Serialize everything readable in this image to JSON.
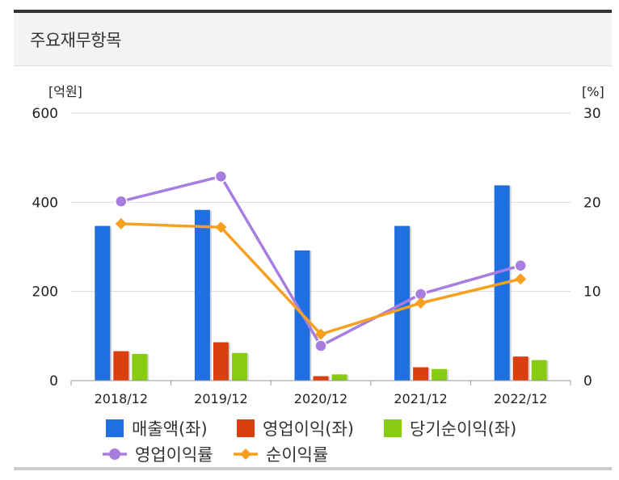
{
  "header": {
    "title": "주요재무항목"
  },
  "chart_data": {
    "type": "bar",
    "categories": [
      "2018/12",
      "2019/12",
      "2020/12",
      "2021/12",
      "2022/12"
    ],
    "left_axis": {
      "unit": "[억원]",
      "ylim": [
        0,
        600
      ],
      "ticks": [
        "0",
        "200",
        "400",
        "600"
      ]
    },
    "right_axis": {
      "unit": "[%]",
      "ylim": [
        0,
        30
      ],
      "ticks": [
        "0",
        "10",
        "20",
        "30"
      ]
    },
    "series": [
      {
        "name": "매출액(좌)",
        "type": "bar",
        "axis": "left",
        "color": "#1f6fe0",
        "values": [
          347,
          383,
          292,
          347,
          438
        ]
      },
      {
        "name": "영업이익(좌)",
        "type": "bar",
        "axis": "left",
        "color": "#d9400d",
        "values": [
          66,
          86,
          10,
          30,
          54
        ]
      },
      {
        "name": "당기순이익(좌)",
        "type": "bar",
        "axis": "left",
        "color": "#88cc11",
        "values": [
          60,
          62,
          14,
          26,
          46
        ]
      },
      {
        "name": "영업이익률",
        "type": "line",
        "axis": "right",
        "color": "#a77ee0",
        "marker": "circle",
        "values": [
          20.1,
          22.9,
          3.9,
          9.7,
          12.9
        ]
      },
      {
        "name": "순이익률",
        "type": "line",
        "axis": "right",
        "color": "#f7a020",
        "marker": "diamond",
        "values": [
          17.6,
          17.2,
          5.2,
          8.7,
          11.4
        ]
      }
    ],
    "grid": true,
    "legend": "bottom"
  }
}
